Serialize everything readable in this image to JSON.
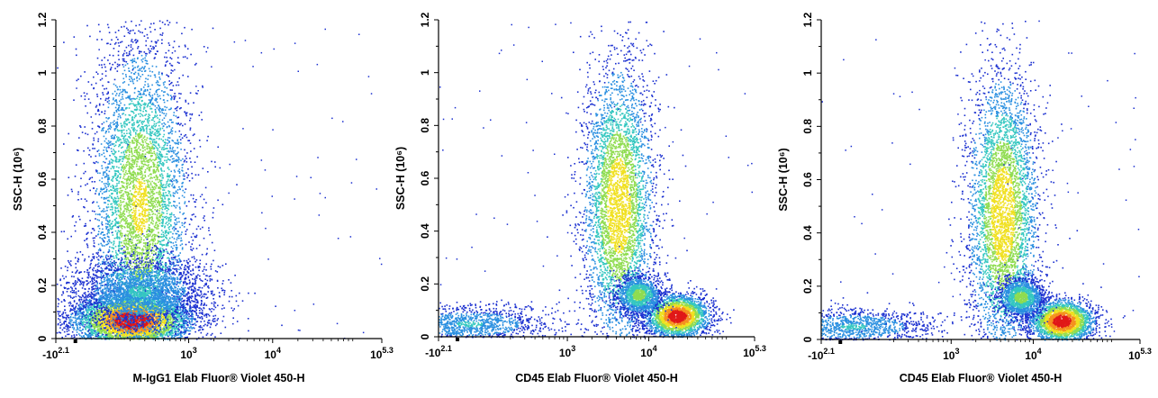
{
  "chart_data": [
    {
      "type": "scatter",
      "subtype": "flow-cytometry-density-dot-plot",
      "xlabel": "M-IgG1 Elab Fluor® Violet 450-H",
      "ylabel": "SSC-H (10⁶)",
      "x_scale": "biexponential",
      "x_ticks": [
        "-10^2.1",
        "10^3",
        "10^4",
        "10^5.3"
      ],
      "y_ticks": [
        "0",
        "0.2",
        "0.4",
        "0.6",
        "0.8",
        "1",
        "1.2"
      ],
      "ylim": [
        0,
        1.2
      ],
      "colormap": [
        "#1a2fd0",
        "#2a8fe0",
        "#35c7c0",
        "#8fdc50",
        "#f0e020",
        "#f59020",
        "#e01818"
      ],
      "populations": [
        {
          "x": 210,
          "y": 0.07,
          "relative_density": 1.0
        },
        {
          "x": 260,
          "y": 0.5,
          "relative_density": 0.6
        },
        {
          "x": 260,
          "y": 0.18,
          "relative_density": 0.3
        }
      ]
    },
    {
      "type": "scatter",
      "subtype": "flow-cytometry-density-dot-plot",
      "xlabel": "CD45 Elab Fluor® Violet 450-H",
      "ylabel": "SSC-H (10⁶)",
      "x_scale": "biexponential",
      "x_ticks": [
        "-10^2.1",
        "10^3",
        "10^4",
        "10^5.3"
      ],
      "y_ticks": [
        "0",
        "0.2",
        "0.4",
        "0.6",
        "0.8",
        "1",
        "1.2"
      ],
      "ylim": [
        0,
        1.2
      ],
      "colormap": [
        "#1a2fd0",
        "#2a8fe0",
        "#35c7c0",
        "#8fdc50",
        "#f0e020",
        "#f59020",
        "#e01818"
      ],
      "populations": [
        {
          "x": 4200,
          "y": 0.5,
          "relative_density": 0.7
        },
        {
          "x": 22000,
          "y": 0.08,
          "relative_density": 1.0
        },
        {
          "x": 7500,
          "y": 0.16,
          "relative_density": 0.5
        },
        {
          "x": 40,
          "y": 0.05,
          "relative_density": 0.3
        }
      ]
    },
    {
      "type": "scatter",
      "subtype": "flow-cytometry-density-dot-plot",
      "xlabel": "CD45 Elab Fluor® Violet 450-H",
      "ylabel": "SSC-H (10⁶)",
      "x_scale": "biexponential",
      "x_ticks": [
        "-10^2.1",
        "10^3",
        "10^4",
        "10^5.3"
      ],
      "y_ticks": [
        "0",
        "0.2",
        "0.4",
        "0.6",
        "0.8",
        "1",
        "1.2"
      ],
      "ylim": [
        0,
        1.2
      ],
      "colormap": [
        "#1a2fd0",
        "#2a8fe0",
        "#35c7c0",
        "#8fdc50",
        "#f0e020",
        "#f59020",
        "#e01818"
      ],
      "populations": [
        {
          "x": 4200,
          "y": 0.47,
          "relative_density": 0.7
        },
        {
          "x": 22000,
          "y": 0.07,
          "relative_density": 1.0
        },
        {
          "x": 7000,
          "y": 0.16,
          "relative_density": 0.5
        },
        {
          "x": 40,
          "y": 0.05,
          "relative_density": 0.3
        }
      ]
    }
  ]
}
